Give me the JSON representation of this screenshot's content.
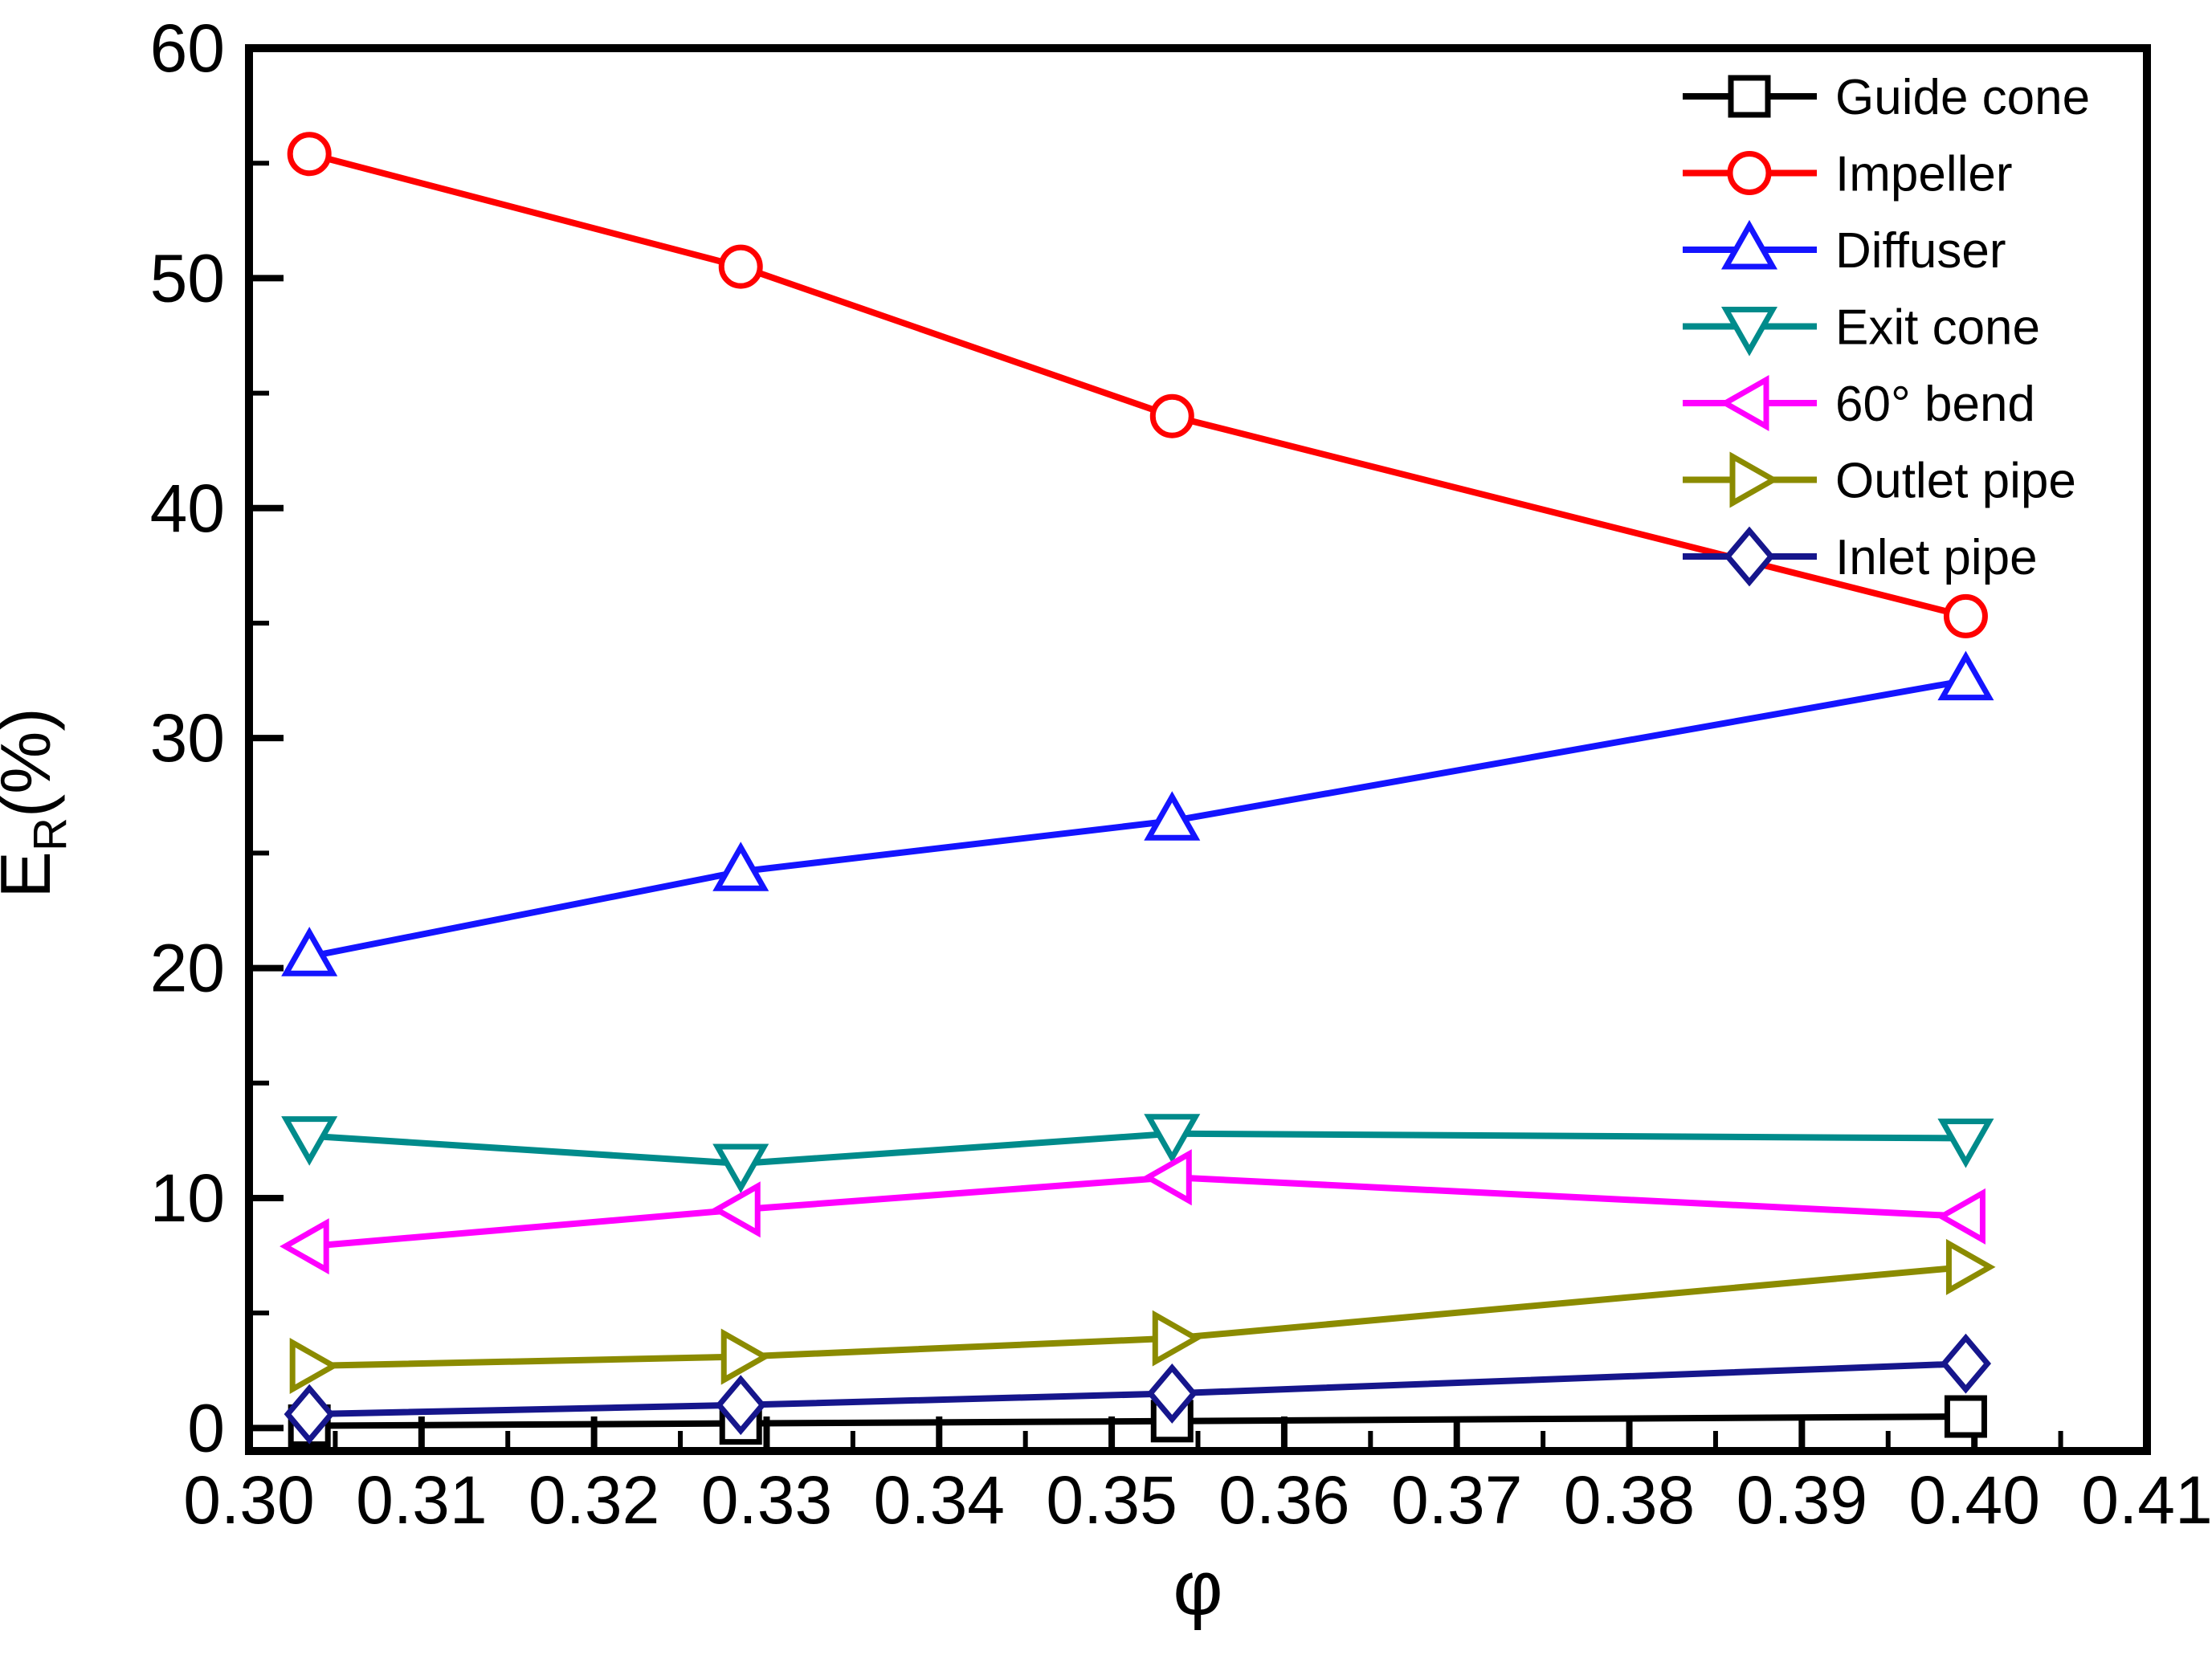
{
  "figure": {
    "background": "#FFFFFF",
    "description": "Energy loss ratio versus flow coefficient line chart"
  },
  "chart_data": {
    "type": "line",
    "title": "",
    "xlabel": "φ",
    "ylabel": "E_R(%)",
    "ylabel_parts": {
      "base": "E",
      "sub": "R",
      "suffix": "(%)"
    },
    "xlim": [
      0.3,
      0.41
    ],
    "ylim": [
      -1,
      60
    ],
    "grid": false,
    "legend_position": "top-right",
    "x": [
      0.3035,
      0.3285,
      0.3535,
      0.3995
    ],
    "x_major_ticks": [
      0.3,
      0.31,
      0.32,
      0.33,
      0.34,
      0.35,
      0.36,
      0.37,
      0.38,
      0.39,
      0.4,
      0.41
    ],
    "x_tick_labels": [
      "0.30",
      "0.31",
      "0.32",
      "0.33",
      "0.34",
      "0.35",
      "0.36",
      "0.37",
      "0.38",
      "0.39",
      "0.40",
      "0.41"
    ],
    "x_minor_tick_offset": 0.005,
    "y_major_ticks": [
      0,
      10,
      20,
      30,
      40,
      50,
      60
    ],
    "y_tick_labels": [
      "0",
      "10",
      "20",
      "30",
      "40",
      "50",
      "60"
    ],
    "y_minor_ticks": [
      5,
      15,
      25,
      35,
      45,
      55
    ],
    "series": [
      {
        "name": "Guide cone",
        "color": "#000000",
        "marker": "square",
        "values": [
          0.1,
          0.2,
          0.3,
          0.5
        ]
      },
      {
        "name": "Impeller",
        "color": "#FF0000",
        "marker": "circle",
        "values": [
          55.4,
          50.5,
          44.0,
          35.3
        ]
      },
      {
        "name": "Diffuser",
        "color": "#1414FF",
        "marker": "triangle-up",
        "values": [
          20.5,
          24.2,
          26.4,
          32.5
        ]
      },
      {
        "name": "Exit cone",
        "color": "#008B8B",
        "marker": "triangle-down",
        "values": [
          12.7,
          11.5,
          12.8,
          12.6
        ]
      },
      {
        "name": "60° bend",
        "color": "#FF00FF",
        "marker": "triangle-left",
        "values": [
          7.9,
          9.5,
          10.9,
          9.2
        ]
      },
      {
        "name": "Outlet pipe",
        "color": "#8B8B00",
        "marker": "triangle-right",
        "values": [
          2.7,
          3.1,
          3.9,
          7.0
        ]
      },
      {
        "name": "Inlet pipe",
        "color": "#16168C",
        "marker": "diamond",
        "values": [
          0.6,
          1.0,
          1.5,
          2.8
        ]
      }
    ]
  }
}
